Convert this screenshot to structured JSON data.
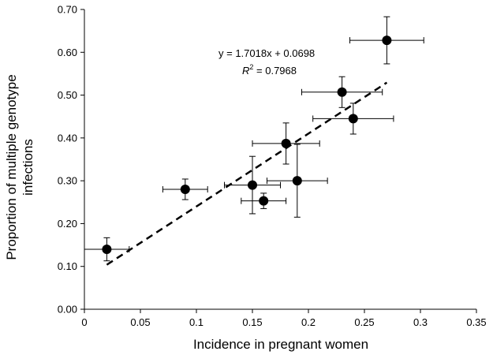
{
  "chart_data": {
    "type": "scatter",
    "xlabel": "Incidence in pregnant women",
    "ylabel_lines": [
      "Proportion of multiple genotype",
      "infections"
    ],
    "xlim": [
      0,
      0.35
    ],
    "ylim": [
      0,
      0.7
    ],
    "x_ticks": [
      "0",
      "0.05",
      "0.1",
      "0.15",
      "0.2",
      "0.25",
      "0.3",
      "0.35"
    ],
    "y_ticks": [
      "0.00",
      "0.10",
      "0.20",
      "0.30",
      "0.40",
      "0.50",
      "0.60",
      "0.70"
    ],
    "grid": false,
    "points": [
      {
        "x": 0.02,
        "y": 0.14,
        "xerr": 0.02,
        "yerr": 0.027
      },
      {
        "x": 0.09,
        "y": 0.28,
        "xerr": 0.02,
        "yerr": 0.024
      },
      {
        "x": 0.15,
        "y": 0.29,
        "xerr": 0.025,
        "yerr": 0.067
      },
      {
        "x": 0.16,
        "y": 0.253,
        "xerr": 0.02,
        "yerr": 0.018
      },
      {
        "x": 0.18,
        "y": 0.387,
        "xerr": 0.03,
        "yerr": 0.048
      },
      {
        "x": 0.19,
        "y": 0.3,
        "xerr": 0.027,
        "yerr": 0.085
      },
      {
        "x": 0.23,
        "y": 0.507,
        "xerr": 0.036,
        "yerr": 0.036
      },
      {
        "x": 0.24,
        "y": 0.445,
        "xerr": 0.036,
        "yerr": 0.036
      },
      {
        "x": 0.27,
        "y": 0.628,
        "xerr": 0.033,
        "yerr": 0.055
      }
    ],
    "trendline": {
      "slope": 1.7018,
      "intercept": 0.0698,
      "x_range": [
        0.02,
        0.27
      ],
      "style": "dashed"
    },
    "annotations": {
      "equation": "y = 1.7018x + 0.0698",
      "r2": "R2 = 0.7968",
      "r2_prefix": "R",
      "r2_superscript": "2",
      "r2_value": " = 0.7968"
    }
  }
}
